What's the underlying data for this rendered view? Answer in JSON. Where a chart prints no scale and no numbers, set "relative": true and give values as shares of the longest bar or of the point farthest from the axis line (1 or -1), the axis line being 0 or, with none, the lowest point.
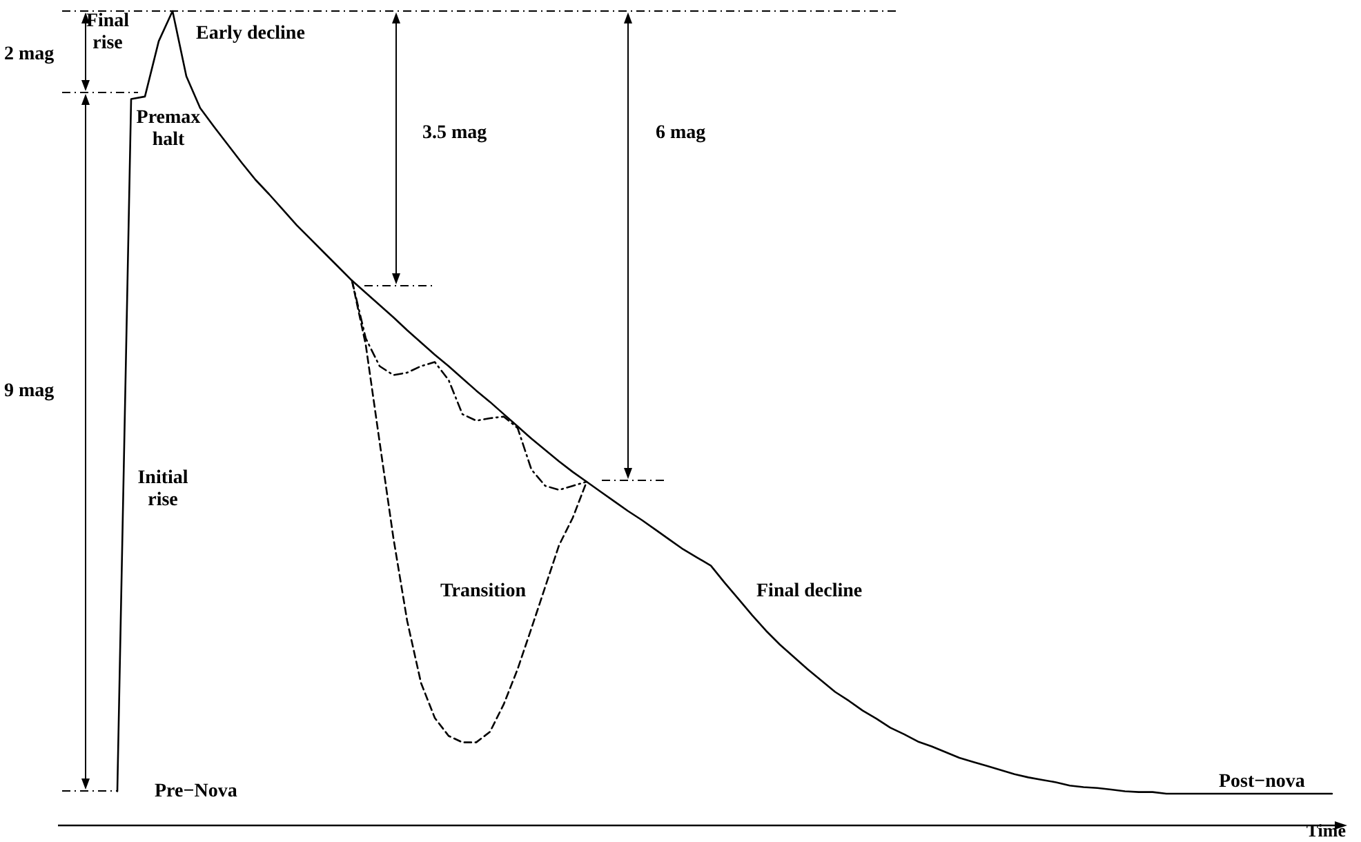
{
  "chart_data": {
    "type": "line",
    "relative": true,
    "xlabel": "Time",
    "grid": false,
    "marker": "none",
    "categories": [
      null,
      null,
      null,
      null,
      null,
      null,
      null,
      null,
      null,
      null,
      null,
      null,
      null,
      null,
      null,
      null,
      null,
      null,
      null,
      null,
      null,
      null,
      null,
      null,
      null,
      null,
      null,
      null,
      null,
      null,
      null,
      null,
      null,
      null,
      null,
      null,
      null,
      null,
      null,
      null,
      null,
      null,
      null,
      null,
      null,
      null,
      null,
      null,
      null,
      null,
      null,
      null,
      null,
      null,
      null,
      null,
      null,
      null,
      null,
      null,
      null,
      null,
      null,
      null,
      null,
      null,
      null,
      null,
      null,
      null,
      null,
      null,
      null,
      null,
      null,
      null,
      null,
      null,
      null,
      null,
      null,
      null,
      null,
      null,
      null,
      null,
      null,
      null,
      null,
      null,
      null,
      null,
      null
    ],
    "series": [
      {
        "color": "#000000",
        "line_style": "solid",
        "values": [
          null,
          null,
          null,
          null,
          0.042,
          0.892,
          0.895,
          0.963,
          1.0,
          0.92,
          0.881,
          0.858,
          0.836,
          0.814,
          0.793,
          0.775,
          0.756,
          0.737,
          0.72,
          0.703,
          0.686,
          0.669,
          0.654,
          0.639,
          0.624,
          0.608,
          0.593,
          0.578,
          0.564,
          0.549,
          0.534,
          0.52,
          0.505,
          0.49,
          0.475,
          0.461,
          0.447,
          0.434,
          0.422,
          0.41,
          0.398,
          0.386,
          0.375,
          0.363,
          0.351,
          0.339,
          0.329,
          0.319,
          0.298,
          0.278,
          0.258,
          0.239,
          0.222,
          0.207,
          0.192,
          0.178,
          0.164,
          0.153,
          0.141,
          0.131,
          0.12,
          0.112,
          0.103,
          0.097,
          0.09,
          0.083,
          0.078,
          0.073,
          0.068,
          0.063,
          0.059,
          0.056,
          0.053,
          0.049,
          0.047,
          0.046,
          0.044,
          0.042,
          0.041,
          0.041,
          0.039,
          0.039,
          0.039,
          0.039,
          0.039,
          0.039,
          0.039,
          0.039,
          0.039,
          0.039,
          0.039,
          0.039,
          0.039
        ]
      },
      {
        "color": "#000000",
        "line_style": "dashed",
        "values": [
          null,
          null,
          null,
          null,
          null,
          null,
          null,
          null,
          null,
          null,
          null,
          null,
          null,
          null,
          null,
          null,
          null,
          null,
          null,
          null,
          null,
          0.669,
          0.59,
          0.471,
          0.353,
          0.251,
          0.175,
          0.132,
          0.11,
          0.102,
          0.102,
          0.115,
          0.149,
          0.192,
          0.242,
          0.293,
          0.344,
          0.378,
          0.422,
          null,
          null,
          null,
          null,
          null,
          null,
          null,
          null,
          null,
          null,
          null,
          null,
          null,
          null,
          null,
          null,
          null,
          null,
          null,
          null,
          null,
          null,
          null,
          null,
          null,
          null,
          null,
          null,
          null,
          null,
          null,
          null,
          null,
          null,
          null,
          null,
          null,
          null,
          null,
          null,
          null,
          null,
          null,
          null,
          null,
          null,
          null,
          null,
          null,
          null,
          null,
          null,
          null,
          null
        ]
      },
      {
        "color": "#000000",
        "line_style": "dotted",
        "values": [
          null,
          null,
          null,
          null,
          null,
          null,
          null,
          null,
          null,
          null,
          null,
          null,
          null,
          null,
          null,
          null,
          null,
          null,
          null,
          null,
          null,
          0.669,
          0.598,
          0.564,
          0.553,
          0.556,
          0.564,
          0.569,
          0.547,
          0.505,
          0.497,
          0.5,
          0.502,
          0.488,
          0.437,
          0.417,
          0.412,
          0.417,
          0.422,
          null,
          null,
          null,
          null,
          null,
          null,
          null,
          null,
          null,
          null,
          null,
          null,
          null,
          null,
          null,
          null,
          null,
          null,
          null,
          null,
          null,
          null,
          null,
          null,
          null,
          null,
          null,
          null,
          null,
          null,
          null,
          null,
          null,
          null,
          null,
          null,
          null,
          null,
          null,
          null,
          null,
          null,
          null,
          null,
          null,
          null,
          null,
          null,
          null,
          null,
          null,
          null,
          null,
          null
        ]
      }
    ],
    "annotations": [
      "Final rise",
      "Premax halt",
      "Early decline",
      "Initial rise",
      "Pre−Nova",
      "Transition",
      "Final decline",
      "Post−nova",
      "2 mag",
      "9 mag",
      "3.5 mag",
      "6 mag"
    ]
  }
}
